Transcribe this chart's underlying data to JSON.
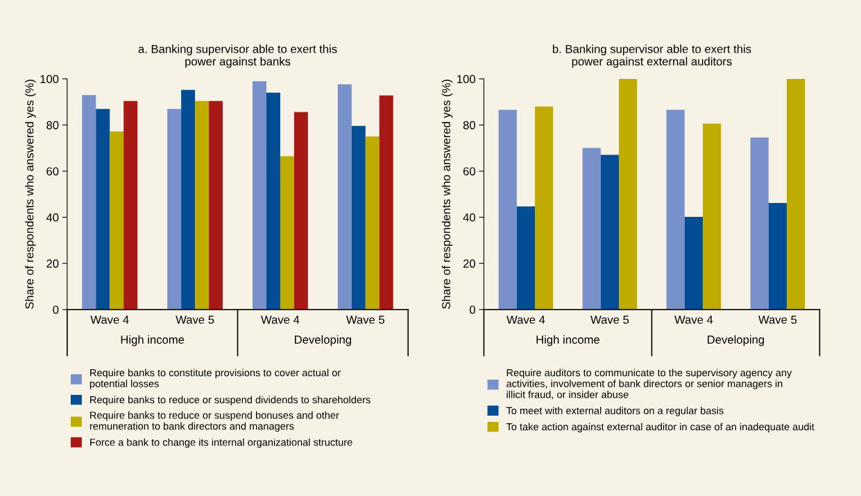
{
  "chart_data": [
    {
      "type": "bar",
      "title": "a. Banking supervisor able to exert this\npower against banks",
      "ylabel": "Share of respondents who answered yes (%)",
      "categories": [
        "Wave 4",
        "Wave 5",
        "Wave 4",
        "Wave 5"
      ],
      "annotations": [
        "High income",
        "Developing"
      ],
      "series": [
        {
          "name": "Require banks to constitute provisions to cover actual or\npotential losses",
          "color": "#7891cb",
          "values": [
            93,
            87,
            99,
            97.6
          ]
        },
        {
          "name": "Require banks to reduce or suspend dividends to shareholders",
          "color": "#024d94",
          "values": [
            87,
            95.2,
            94,
            79.6
          ]
        },
        {
          "name": "Require banks to reduce or suspend bonuses and other\nremuneration to bank directors and managers",
          "color": "#c0ac00",
          "values": [
            77.2,
            90.4,
            66.5,
            75
          ]
        },
        {
          "name": "Force a bank to change its internal organizational structure",
          "color": "#a81916",
          "values": [
            90.4,
            90.4,
            85.6,
            92.8
          ]
        }
      ],
      "ylim": [
        0,
        100
      ],
      "yticks": [
        0,
        20,
        40,
        60,
        80,
        100
      ],
      "grid": false,
      "legend": "bottom"
    },
    {
      "type": "bar",
      "title": "b. Banking supervisor able to exert this\npower against external auditors",
      "ylabel": "Share of respondents who answered yes (%)",
      "categories": [
        "Wave 4",
        "Wave 5",
        "Wave 4",
        "Wave 5"
      ],
      "annotations": [
        "High income",
        "Developing"
      ],
      "series": [
        {
          "name": "Require auditors to communicate to the supervisory agency any\nactivities, involvement of bank directors or senior managers in\nillicit fraud, or insider abuse",
          "color": "#7891cb",
          "values": [
            86.6,
            70.1,
            86.6,
            74.6
          ]
        },
        {
          "name": "To meet with external auditors on a regular basis",
          "color": "#024d94",
          "values": [
            44.7,
            67.1,
            40.2,
            46.2
          ]
        },
        {
          "name": "To take action against external auditor in case of an inadequate audit",
          "color": "#c0ac00",
          "values": [
            88,
            100,
            80.6,
            100
          ]
        }
      ],
      "ylim": [
        0,
        100
      ],
      "yticks": [
        0,
        20,
        40,
        60,
        80,
        100
      ],
      "grid": false,
      "legend": "bottom"
    }
  ]
}
